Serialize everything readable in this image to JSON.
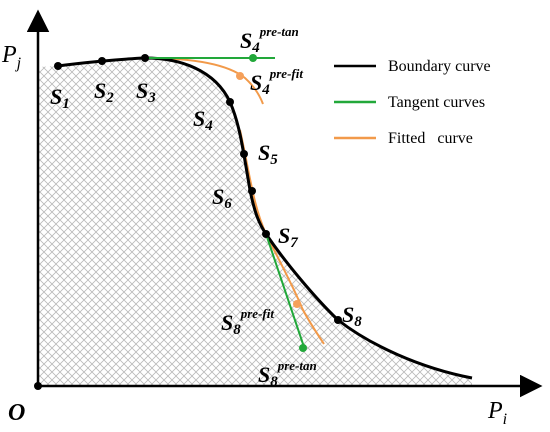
{
  "colors": {
    "boundary": "#000000",
    "tangent": "#22a83a",
    "fitted": "#f29a4a",
    "fitted_point": "#f5a05a",
    "hatch": "#b9b9b9"
  },
  "axes": {
    "origin": "O",
    "x_base": "P",
    "x_sub": "i",
    "y_base": "P",
    "y_sub": "j"
  },
  "legend": {
    "boundary": "Boundary curve",
    "tangent": "Tangent curves",
    "fitted": "Fitted   curve"
  },
  "points": {
    "s1": "1",
    "s2": "2",
    "s3": "3",
    "s4": "4",
    "s5": "5",
    "s6": "6",
    "s7": "7",
    "s8": "8",
    "base": "S",
    "s4_pre_tan": "pre-tan",
    "s4_pre_fit": "pre-fit",
    "s8_pre_fit": "pre-fit",
    "s8_pre_tan": "pre-tan"
  }
}
